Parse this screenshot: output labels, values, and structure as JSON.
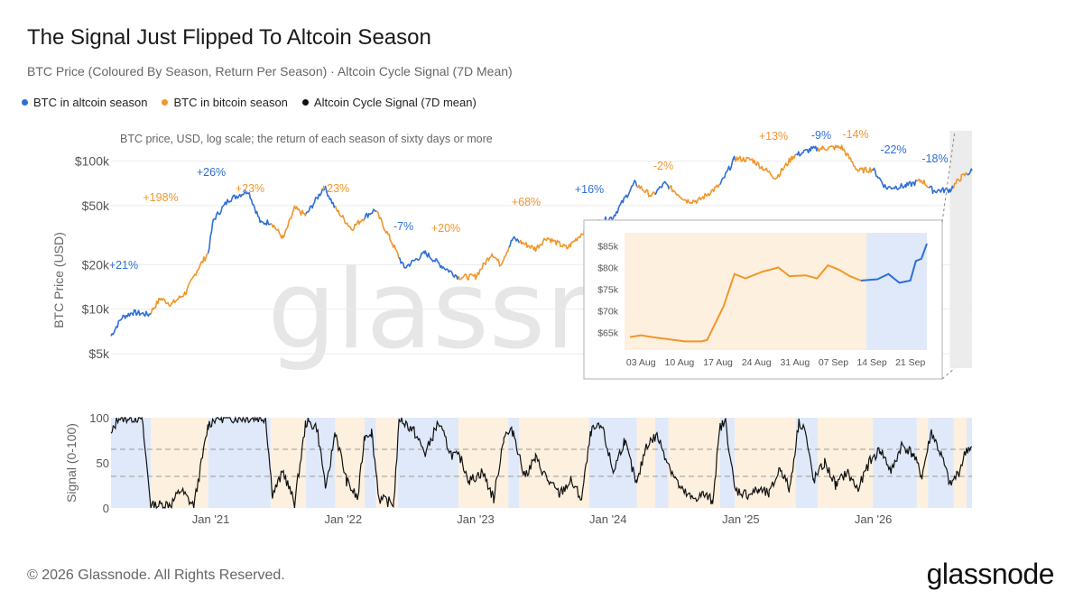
{
  "title": "The Signal Just Flipped To Altcoin Season",
  "subtitle": "BTC Price (Coloured By Season, Return Per Season) · Altcoin Cycle Signal (7D Mean)",
  "legend": [
    {
      "label": "BTC in altcoin season",
      "color": "#2f6fd6"
    },
    {
      "label": "BTC in bitcoin season",
      "color": "#f0962a"
    },
    {
      "label": "Altcoin Cycle Signal (7D mean)",
      "color": "#111111"
    }
  ],
  "colors": {
    "altcoin": "#2f6fd6",
    "bitcoin": "#f0962a",
    "altcoin_bg": "#dfe9fa",
    "bitcoin_bg": "#fdf0de",
    "signal": "#111111",
    "recent_bg": "#ececec"
  },
  "watermark": "glassnode",
  "footer": "© 2026 Glassnode. All Rights Reserved.",
  "logo": "glassnode",
  "chart_data": [
    {
      "type": "line",
      "note": "BTC price, USD, log scale; the return of each season of sixty days or more",
      "ylabel": "BTC Price (USD)",
      "yscale": "log",
      "ylim": [
        4000,
        160000
      ],
      "xlim": [
        "2020-04-01",
        "2026-09-30"
      ],
      "yticks": [
        {
          "v": 5000,
          "label": "$5k"
        },
        {
          "v": 10000,
          "label": "$10k"
        },
        {
          "v": 20000,
          "label": "$20k"
        },
        {
          "v": 50000,
          "label": "$50k"
        },
        {
          "v": 100000,
          "label": "$100k"
        }
      ],
      "seasons": [
        {
          "start": "2020-04-01",
          "end": "2020-07-20",
          "type": "altcoin",
          "return": "+21%"
        },
        {
          "start": "2020-07-20",
          "end": "2020-12-25",
          "type": "bitcoin",
          "return": "+198%"
        },
        {
          "start": "2020-12-25",
          "end": "2021-06-15",
          "type": "altcoin",
          "return": "+26%"
        },
        {
          "start": "2021-06-15",
          "end": "2021-09-20",
          "type": "bitcoin",
          "return": "+23%"
        },
        {
          "start": "2021-09-20",
          "end": "2021-12-10",
          "type": "altcoin",
          "return": ""
        },
        {
          "start": "2021-12-10",
          "end": "2022-03-01",
          "type": "bitcoin",
          "return": "+23%"
        },
        {
          "start": "2022-03-01",
          "end": "2022-04-01",
          "type": "altcoin",
          "return": ""
        },
        {
          "start": "2022-04-01",
          "end": "2022-06-01",
          "type": "bitcoin",
          "return": ""
        },
        {
          "start": "2022-06-01",
          "end": "2022-11-15",
          "type": "altcoin",
          "return": "-7%"
        },
        {
          "start": "2022-11-15",
          "end": "2023-04-01",
          "type": "bitcoin",
          "return": "+20%"
        },
        {
          "start": "2023-04-01",
          "end": "2023-05-01",
          "type": "altcoin",
          "return": ""
        },
        {
          "start": "2023-05-01",
          "end": "2023-11-10",
          "type": "bitcoin",
          "return": "+68%"
        },
        {
          "start": "2023-11-10",
          "end": "2024-03-20",
          "type": "altcoin",
          "return": "+16%"
        },
        {
          "start": "2024-03-20",
          "end": "2024-05-10",
          "type": "bitcoin",
          "return": ""
        },
        {
          "start": "2024-05-10",
          "end": "2024-06-15",
          "type": "altcoin",
          "return": ""
        },
        {
          "start": "2024-06-15",
          "end": "2024-11-05",
          "type": "bitcoin",
          "return": "-2%"
        },
        {
          "start": "2024-11-05",
          "end": "2024-12-15",
          "type": "altcoin",
          "return": ""
        },
        {
          "start": "2024-12-15",
          "end": "2025-06-01",
          "type": "bitcoin",
          "return": "+13%"
        },
        {
          "start": "2025-06-01",
          "end": "2025-08-01",
          "type": "altcoin",
          "return": "-9%"
        },
        {
          "start": "2025-08-01",
          "end": "2025-12-31",
          "type": "bitcoin",
          "return": "-14%"
        },
        {
          "start": "2025-12-31",
          "end": "2026-05-01",
          "type": "altcoin",
          "return": "-22%"
        },
        {
          "start": "2026-05-01",
          "end": "2026-06-01",
          "type": "bitcoin",
          "return": ""
        },
        {
          "start": "2026-06-01",
          "end": "2026-08-10",
          "type": "altcoin",
          "return": "-18%"
        },
        {
          "start": "2026-08-10",
          "end": "2026-09-15",
          "type": "bitcoin",
          "return": ""
        },
        {
          "start": "2026-09-15",
          "end": "2026-09-30",
          "type": "altcoin",
          "return": ""
        }
      ],
      "price_points": [
        [
          "2020-04-01",
          6600
        ],
        [
          "2020-05-01",
          8800
        ],
        [
          "2020-06-01",
          9500
        ],
        [
          "2020-07-15",
          9200
        ],
        [
          "2020-08-15",
          11800
        ],
        [
          "2020-09-15",
          10800
        ],
        [
          "2020-10-25",
          13000
        ],
        [
          "2020-11-25",
          18500
        ],
        [
          "2020-12-25",
          24000
        ],
        [
          "2021-01-08",
          40000
        ],
        [
          "2021-02-20",
          55000
        ],
        [
          "2021-04-14",
          63000
        ],
        [
          "2021-05-19",
          38000
        ],
        [
          "2021-06-15",
          39000
        ],
        [
          "2021-07-20",
          30000
        ],
        [
          "2021-08-20",
          48000
        ],
        [
          "2021-09-20",
          43000
        ],
        [
          "2021-11-10",
          67000
        ],
        [
          "2021-12-10",
          48000
        ],
        [
          "2022-01-24",
          35000
        ],
        [
          "2022-03-01",
          42000
        ],
        [
          "2022-03-30",
          47000
        ],
        [
          "2022-05-10",
          30000
        ],
        [
          "2022-06-18",
          19000
        ],
        [
          "2022-08-15",
          24000
        ],
        [
          "2022-10-01",
          19500
        ],
        [
          "2022-11-15",
          16500
        ],
        [
          "2023-01-01",
          16600
        ],
        [
          "2023-02-15",
          24000
        ],
        [
          "2023-03-10",
          20000
        ],
        [
          "2023-04-14",
          30000
        ],
        [
          "2023-06-15",
          25500
        ],
        [
          "2023-07-15",
          30500
        ],
        [
          "2023-09-10",
          25800
        ],
        [
          "2023-11-10",
          36500
        ],
        [
          "2024-01-15",
          42000
        ],
        [
          "2024-03-14",
          71000
        ],
        [
          "2024-05-01",
          58000
        ],
        [
          "2024-06-05",
          70500
        ],
        [
          "2024-08-05",
          54000
        ],
        [
          "2024-09-06",
          54000
        ],
        [
          "2024-11-05",
          69000
        ],
        [
          "2024-12-15",
          104000
        ],
        [
          "2025-02-01",
          102000
        ],
        [
          "2025-04-08",
          77000
        ],
        [
          "2025-05-25",
          108000
        ],
        [
          "2025-07-14",
          120000
        ],
        [
          "2025-08-14",
          122000
        ],
        [
          "2025-10-06",
          124000
        ],
        [
          "2025-11-20",
          86000
        ],
        [
          "2025-12-31",
          88000
        ],
        [
          "2026-02-05",
          66000
        ],
        [
          "2026-04-01",
          68000
        ],
        [
          "2026-05-15",
          74000
        ],
        [
          "2026-06-15",
          63000
        ],
        [
          "2026-08-01",
          64000
        ],
        [
          "2026-09-01",
          78000
        ],
        [
          "2026-09-30",
          86000
        ]
      ]
    },
    {
      "type": "line",
      "title": "inset",
      "xtick_labels": [
        "03 Aug",
        "10 Aug",
        "17 Aug",
        "24 Aug",
        "31 Aug",
        "07 Sep",
        "14 Sep",
        "21 Sep"
      ],
      "yticks": [
        {
          "v": 65000,
          "label": "$65k"
        },
        {
          "v": 70000,
          "label": "$70k"
        },
        {
          "v": 75000,
          "label": "$75k"
        },
        {
          "v": 80000,
          "label": "$80k"
        },
        {
          "v": 85000,
          "label": "$85k"
        }
      ],
      "ylim": [
        61000,
        88000
      ],
      "xlim": [
        "2026-07-31",
        "2026-09-24"
      ],
      "bitcoin_until": "2026-09-13",
      "price_points": [
        [
          "2026-08-01",
          64000
        ],
        [
          "2026-08-03",
          64400
        ],
        [
          "2026-08-05",
          64000
        ],
        [
          "2026-08-08",
          63500
        ],
        [
          "2026-08-11",
          63000
        ],
        [
          "2026-08-14",
          63000
        ],
        [
          "2026-08-15",
          63300
        ],
        [
          "2026-08-18",
          71000
        ],
        [
          "2026-08-20",
          78500
        ],
        [
          "2026-08-22",
          77500
        ],
        [
          "2026-08-25",
          79000
        ],
        [
          "2026-08-28",
          80000
        ],
        [
          "2026-08-30",
          78000
        ],
        [
          "2026-09-02",
          78200
        ],
        [
          "2026-09-04",
          77500
        ],
        [
          "2026-09-06",
          80500
        ],
        [
          "2026-09-08",
          79500
        ],
        [
          "2026-09-10",
          78000
        ],
        [
          "2026-09-12",
          77000
        ],
        [
          "2026-09-15",
          77300
        ],
        [
          "2026-09-17",
          78500
        ],
        [
          "2026-09-19",
          76500
        ],
        [
          "2026-09-21",
          77000
        ],
        [
          "2026-09-22",
          81500
        ],
        [
          "2026-09-23",
          82000
        ],
        [
          "2026-09-24",
          85500
        ]
      ]
    },
    {
      "type": "line",
      "ylabel": "Signal (0-100)",
      "ylim": [
        0,
        100
      ],
      "yticks": [
        0,
        50,
        100
      ],
      "thresholds": [
        35,
        65
      ],
      "xtick_labels": [
        "Jan '21",
        "Jan '22",
        "Jan '23",
        "Jan '24",
        "Jan '25",
        "Jan '26"
      ],
      "signal_points": [
        [
          "2020-04-01",
          80
        ],
        [
          "2020-04-20",
          100
        ],
        [
          "2020-06-25",
          100
        ],
        [
          "2020-07-20",
          2
        ],
        [
          "2020-09-15",
          5
        ],
        [
          "2020-10-10",
          20
        ],
        [
          "2020-11-15",
          2
        ],
        [
          "2020-12-25",
          92
        ],
        [
          "2021-01-15",
          100
        ],
        [
          "2021-06-01",
          100
        ],
        [
          "2021-06-20",
          15
        ],
        [
          "2021-07-20",
          40
        ],
        [
          "2021-08-20",
          5
        ],
        [
          "2021-09-20",
          95
        ],
        [
          "2021-10-20",
          90
        ],
        [
          "2021-11-15",
          20
        ],
        [
          "2021-12-10",
          85
        ],
        [
          "2022-01-10",
          30
        ],
        [
          "2022-02-10",
          10
        ],
        [
          "2022-03-01",
          80
        ],
        [
          "2022-03-20",
          85
        ],
        [
          "2022-04-10",
          10
        ],
        [
          "2022-05-20",
          5
        ],
        [
          "2022-06-05",
          100
        ],
        [
          "2022-07-15",
          85
        ],
        [
          "2022-08-15",
          60
        ],
        [
          "2022-09-20",
          95
        ],
        [
          "2022-10-25",
          60
        ],
        [
          "2022-11-20",
          55
        ],
        [
          "2022-12-15",
          30
        ],
        [
          "2023-01-20",
          40
        ],
        [
          "2023-02-20",
          10
        ],
        [
          "2023-03-20",
          80
        ],
        [
          "2023-04-15",
          85
        ],
        [
          "2023-05-15",
          35
        ],
        [
          "2023-06-15",
          55
        ],
        [
          "2023-07-20",
          30
        ],
        [
          "2023-08-20",
          15
        ],
        [
          "2023-09-20",
          30
        ],
        [
          "2023-10-20",
          10
        ],
        [
          "2023-11-15",
          85
        ],
        [
          "2023-12-15",
          90
        ],
        [
          "2024-01-15",
          40
        ],
        [
          "2024-02-15",
          75
        ],
        [
          "2024-03-20",
          25
        ],
        [
          "2024-04-15",
          70
        ],
        [
          "2024-05-15",
          80
        ],
        [
          "2024-06-20",
          45
        ],
        [
          "2024-07-20",
          20
        ],
        [
          "2024-08-20",
          10
        ],
        [
          "2024-09-20",
          15
        ],
        [
          "2024-10-15",
          8
        ],
        [
          "2024-11-05",
          90
        ],
        [
          "2024-11-20",
          95
        ],
        [
          "2024-12-15",
          20
        ],
        [
          "2025-01-20",
          15
        ],
        [
          "2025-02-20",
          20
        ],
        [
          "2025-03-20",
          15
        ],
        [
          "2025-04-20",
          45
        ],
        [
          "2025-05-15",
          20
        ],
        [
          "2025-06-10",
          95
        ],
        [
          "2025-06-25",
          90
        ],
        [
          "2025-07-20",
          30
        ],
        [
          "2025-08-20",
          50
        ],
        [
          "2025-09-20",
          25
        ],
        [
          "2025-10-20",
          40
        ],
        [
          "2025-11-20",
          20
        ],
        [
          "2025-12-20",
          50
        ],
        [
          "2026-01-20",
          65
        ],
        [
          "2026-02-20",
          40
        ],
        [
          "2026-03-20",
          70
        ],
        [
          "2026-04-20",
          60
        ],
        [
          "2026-05-15",
          35
        ],
        [
          "2026-06-10",
          85
        ],
        [
          "2026-07-10",
          55
        ],
        [
          "2026-08-01",
          25
        ],
        [
          "2026-08-25",
          40
        ],
        [
          "2026-09-15",
          65
        ],
        [
          "2026-09-30",
          68
        ]
      ]
    }
  ]
}
